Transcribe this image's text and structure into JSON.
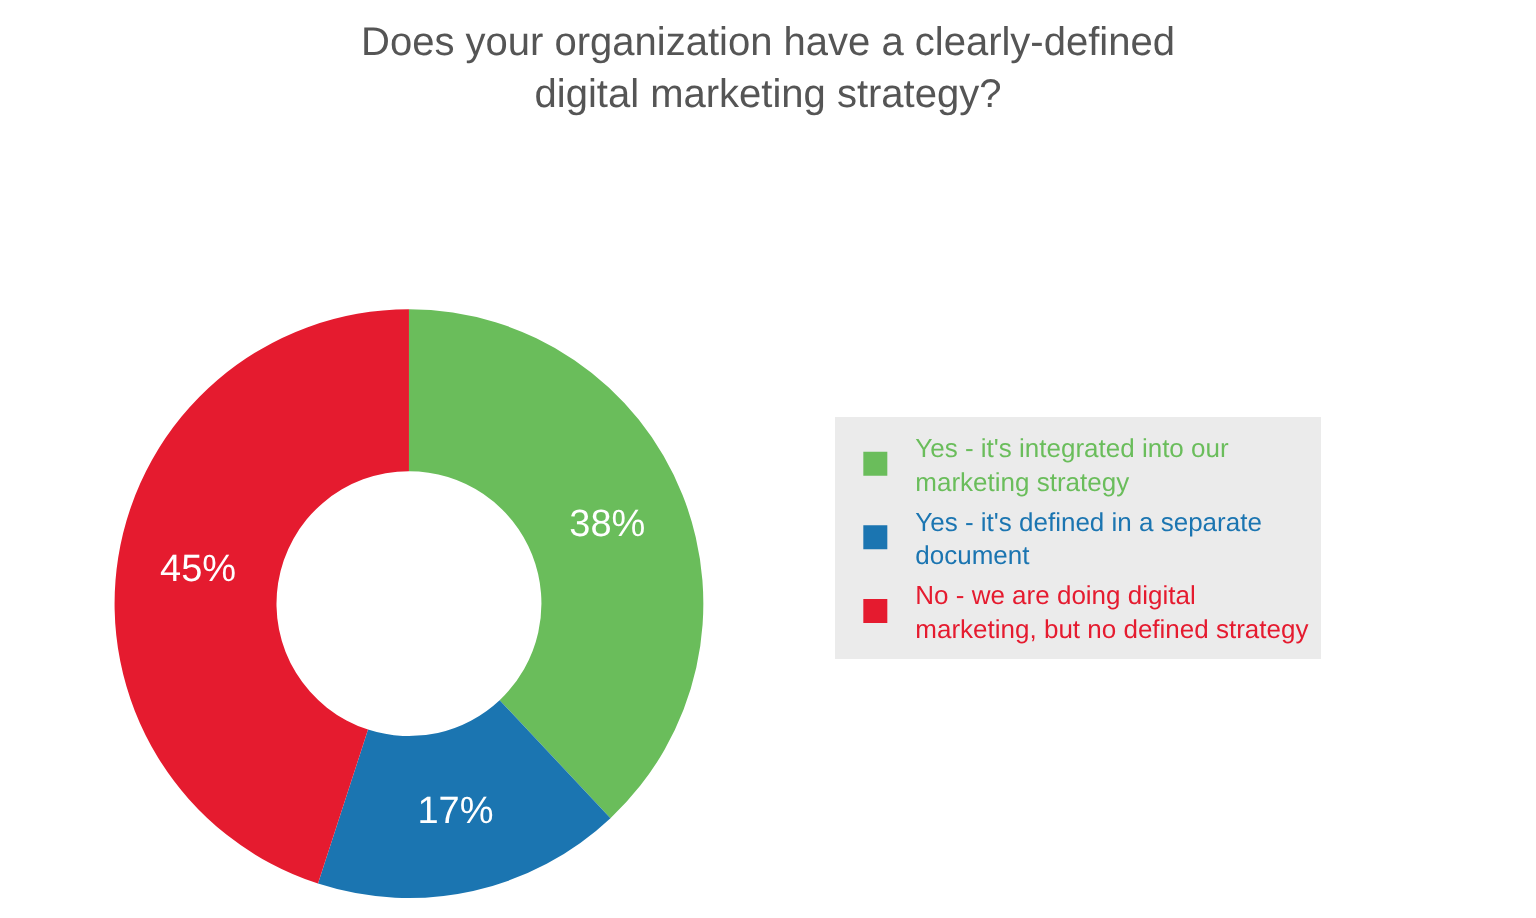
{
  "chart_data": {
    "type": "donut",
    "title": "Does your organization have a clearly-defined digital marketing strategy?",
    "categories": [
      "Yes - it's integrated into our marketing strategy",
      "Yes - it's defined in a separate document",
      "No - we are doing digital marketing, but no defined strategy"
    ],
    "values": [
      38,
      17,
      45
    ],
    "colors": [
      "#6abd5b",
      "#1b75b1",
      "#e51b2f"
    ],
    "value_labels": [
      "38%",
      "17%",
      "45%"
    ],
    "legend": "right"
  }
}
